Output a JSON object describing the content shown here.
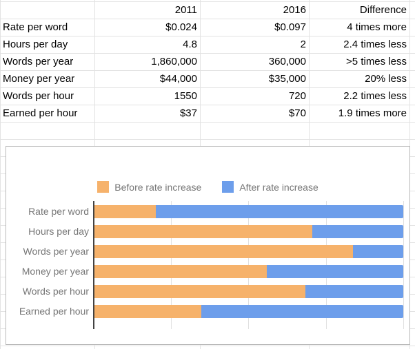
{
  "table": {
    "header": [
      "",
      "2011",
      "2016",
      "Difference"
    ],
    "rows": [
      [
        "Rate per word",
        "$0.024",
        "$0.097",
        "4 times more"
      ],
      [
        "Hours per day",
        "4.8",
        "2",
        "2.4 times less"
      ],
      [
        "Words per year",
        "1,860,000",
        "360,000",
        ">5 times less"
      ],
      [
        "Money per year",
        "$44,000",
        "$35,000",
        "20% less"
      ],
      [
        "Words per hour",
        "1550",
        "720",
        "2.2 times less"
      ],
      [
        "Earned per hour",
        "$37",
        "$70",
        "1.9 times more"
      ]
    ]
  },
  "chart_data": {
    "type": "bar",
    "orientation": "horizontal",
    "stacking": "percent",
    "title": "",
    "categories": [
      "Rate per word",
      "Hours per day",
      "Words per year",
      "Money per year",
      "Words per hour",
      "Earned per hour"
    ],
    "series": [
      {
        "name": "Before rate increase",
        "color": "#F6B26B",
        "values": [
          0.024,
          4.8,
          1860000,
          44000,
          1550,
          37
        ]
      },
      {
        "name": "After rate increase",
        "color": "#6D9EEB",
        "values": [
          0.097,
          2,
          360000,
          35000,
          720,
          70
        ]
      }
    ],
    "xlim": [
      0,
      1
    ],
    "gridlines": [
      0,
      0.25,
      0.5,
      0.75,
      1.0
    ],
    "legend_position": "top",
    "axis_labels_visible": false
  },
  "colors": {
    "grid_line": "#e2e2e2",
    "chart_grid_line": "#e0e0e0",
    "chart_border": "#b7b7b7",
    "axis_line": "#424242",
    "chart_text": "#757575",
    "table_text": "#000000",
    "background": "#ffffff"
  }
}
